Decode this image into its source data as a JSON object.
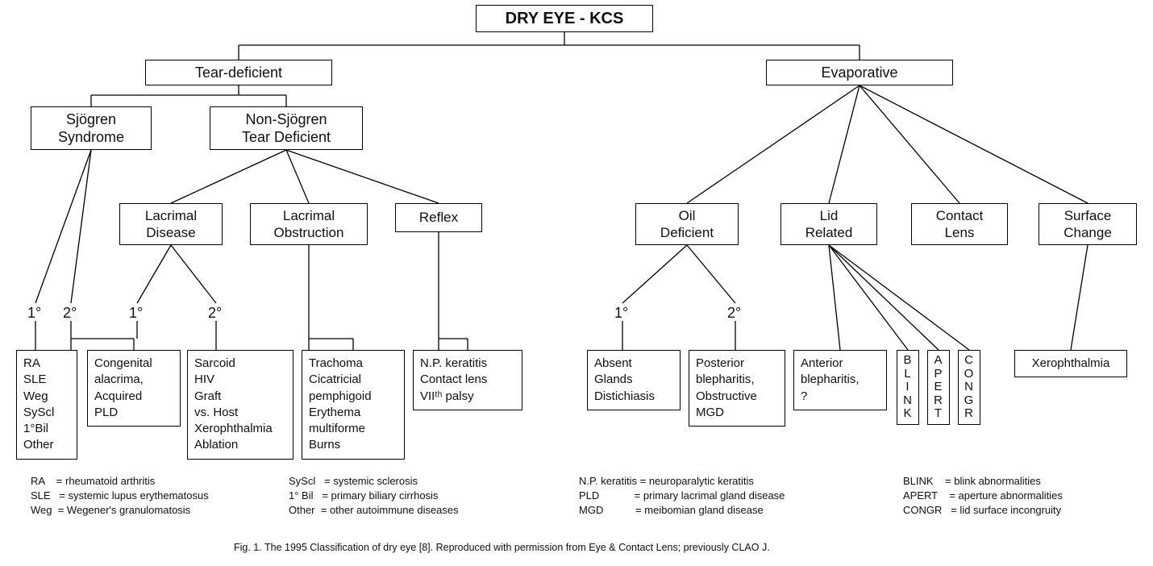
{
  "type": "tree",
  "colors": {
    "background": "#ffffff",
    "border": "#000000",
    "text": "#101010"
  },
  "nodes": {
    "root": {
      "text": "DRY EYE - KCS",
      "fontsize": 20,
      "fontweight": 700
    },
    "teardef": {
      "text": "Tear-deficient",
      "fontsize": 18
    },
    "evap": {
      "text": "Evaporative",
      "fontsize": 18
    },
    "sjogren": {
      "text": "Sjögren\nSyndrome",
      "fontsize": 18
    },
    "nonsjogren": {
      "text": "Non-Sjögren\nTear Deficient",
      "fontsize": 18
    },
    "lacdis": {
      "text": "Lacrimal\nDisease",
      "fontsize": 17
    },
    "lacobs": {
      "text": "Lacrimal\nObstruction",
      "fontsize": 17
    },
    "reflex": {
      "text": "Reflex",
      "fontsize": 17
    },
    "oildef": {
      "text": "Oil\nDeficient",
      "fontsize": 17
    },
    "lidrel": {
      "text": "Lid\nRelated",
      "fontsize": 17
    },
    "contact": {
      "text": "Contact\nLens",
      "fontsize": 17
    },
    "surfchg": {
      "text": "Surface\nChange",
      "fontsize": 17
    }
  },
  "labels": {
    "sj_p": "1°",
    "sj_s": "2°",
    "ld_p": "1°",
    "ld_s": "2°",
    "od_p": "1°",
    "od_s": "2°"
  },
  "leaves": {
    "sj_primary": "RA\nSLE\nWeg\nSyScl\n1°Bil\nOther",
    "ld_primary": "Congenital\n alacrima,\nAcquired\n PLD",
    "ld_secondary": "Sarcoid\nHIV\nGraft\n vs. Host\nXerophthalmia\nAblation",
    "lo_list": "Trachoma\nCicatricial\n pemphigoid\nErythema\n multiforme\nBurns",
    "reflex_list": "N.P. keratitis\nContact lens\nVIIᵗʰ palsy",
    "od_primary": "Absent\nGlands\nDistichiasis",
    "od_secondary": "Posterior\n blepharitis,\nObstructive\n MGD",
    "lid_ant": "Anterior\n blepharitis,\n ?",
    "blink_v": "BLINK",
    "apert_v": "APERT",
    "congr_v": "CONGR",
    "xeroph": "Xerophthalmia"
  },
  "legend": {
    "col1": "RA    = rheumatoid arthritis\nSLE   = systemic lupus erythematosus\nWeg  = Wegener's granulomatosis",
    "col2": "SyScl   = systemic sclerosis\n1° Bil   = primary biliary cirrhosis\nOther  = other autoimmune diseases",
    "col3": "N.P. keratitis = neuroparalytic keratitis\nPLD            = primary lacrimal gland disease\nMGD           = meibomian gland disease",
    "col4": "BLINK    = blink abnormalities\nAPERT    = aperture abnormalities\nCONGR   = lid surface incongruity"
  },
  "caption": "Fig. 1.  The 1995 Classification of dry eye [8]. Reproduced with permission from Eye & Contact Lens; previously CLAO J."
}
